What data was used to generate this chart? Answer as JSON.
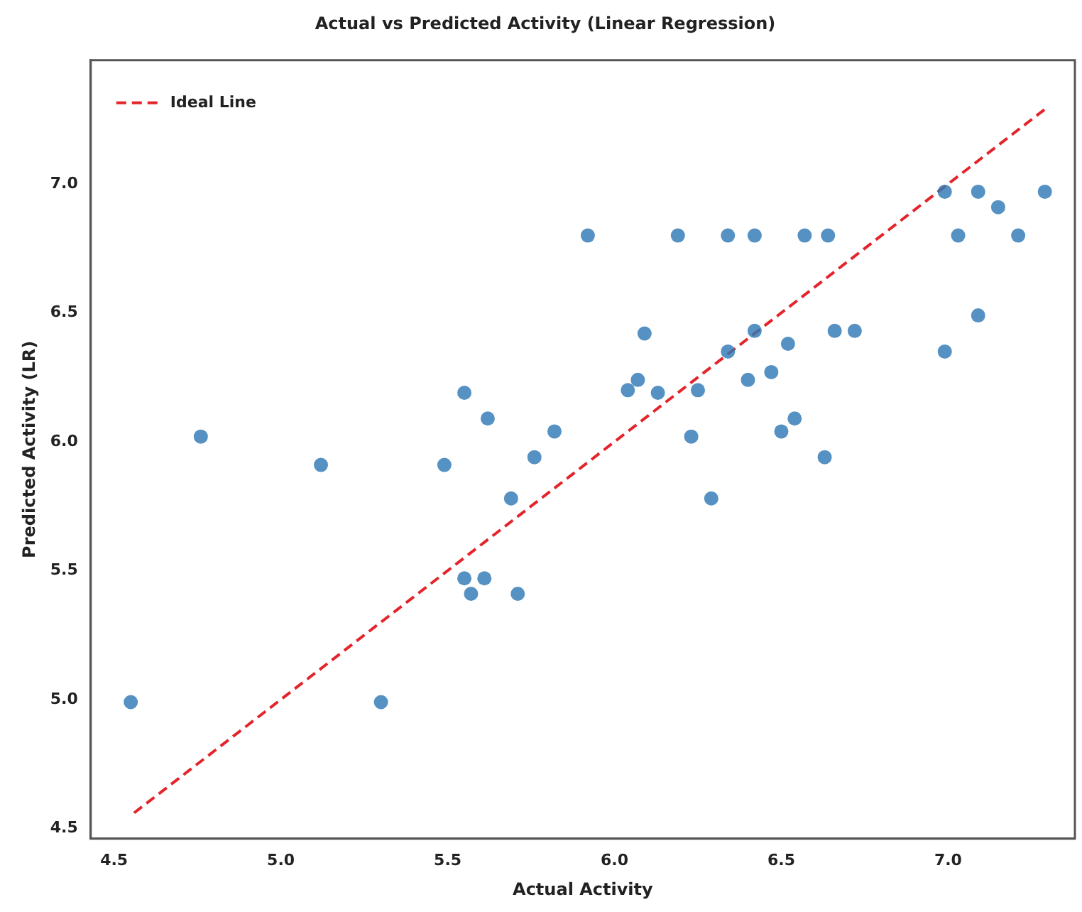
{
  "chart_data": {
    "type": "scatter",
    "title": "Actual vs Predicted Activity (Linear Regression)",
    "xlabel": "Actual Activity",
    "ylabel": "Predicted Activity (LR)",
    "xlim": [
      4.43,
      7.38
    ],
    "ylim": [
      4.46,
      7.48
    ],
    "xticks": [
      4.5,
      {
        "value": 5,
        "label": "5.0"
      },
      5.5,
      {
        "value": 6,
        "label": "6.0"
      },
      6.5,
      {
        "value": 7,
        "label": "7.0"
      }
    ],
    "yticks": [
      4.5,
      {
        "value": 5,
        "label": "5.0"
      },
      5.5,
      {
        "value": 6,
        "label": "6.0"
      },
      6.5,
      {
        "value": 7,
        "label": "7.0"
      }
    ],
    "grid": false,
    "legend": "top left",
    "series": [
      {
        "marker": "circle",
        "color": "#2f78b4",
        "x": [
          4.55,
          4.76,
          5.12,
          5.49,
          5.55,
          5.62,
          5.69,
          5.76,
          5.82,
          5.55,
          5.57,
          5.61,
          5.71,
          5.3,
          5.92,
          6.19,
          6.34,
          6.42,
          6.57,
          6.64,
          6.99,
          7.09,
          7.15,
          7.29,
          7.03,
          7.21,
          7.09,
          6.99,
          6.09,
          6.42,
          6.34,
          6.52,
          6.66,
          6.72,
          6.47,
          6.07,
          6.04,
          6.13,
          6.25,
          6.4,
          6.23,
          6.5,
          6.54,
          6.63,
          6.29
        ],
        "values": [
          4.99,
          6.02,
          5.91,
          5.91,
          6.19,
          6.09,
          5.78,
          5.94,
          6.04,
          5.47,
          5.41,
          5.47,
          5.41,
          4.99,
          6.8,
          6.8,
          6.8,
          6.8,
          6.8,
          6.8,
          6.97,
          6.97,
          6.91,
          6.97,
          6.8,
          6.8,
          6.49,
          6.35,
          6.42,
          6.43,
          6.35,
          6.38,
          6.43,
          6.43,
          6.27,
          6.24,
          6.2,
          6.19,
          6.2,
          6.24,
          6.02,
          6.04,
          6.09,
          5.94,
          5.78
        ]
      },
      {
        "type": "line",
        "name": "Ideal Line",
        "color": "#e3242b",
        "line_style": "dashed",
        "marker": "none",
        "x": [
          4.56,
          7.29
        ],
        "values": [
          4.56,
          7.29
        ]
      }
    ]
  }
}
